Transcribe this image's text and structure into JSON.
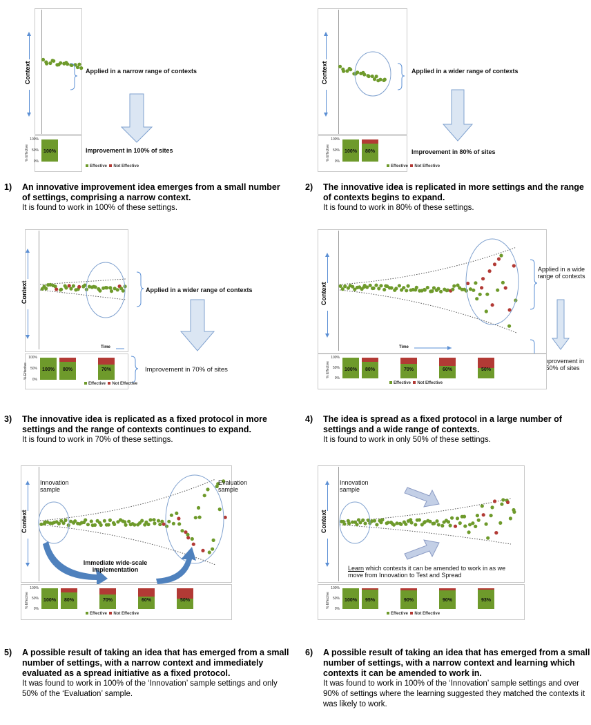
{
  "colors": {
    "effective": "#6e9a2b",
    "not_effective": "#b23a35",
    "arrow": "#5b8fd4",
    "ellipse": "#7fa1cf"
  },
  "common": {
    "context_label": "Context",
    "pct_effective_label": "% Effective",
    "ticks": [
      "100%",
      "50%",
      "0%"
    ],
    "legend_effective": "Effective",
    "legend_not_effective": "Not Effective",
    "time_label": "Time"
  },
  "panels": [
    {
      "number": "1)",
      "note_range": "Applied in a narrow range of contexts",
      "note_improvement": "Improvement in 100% of sites",
      "bars": [
        {
          "label": "100%",
          "effective": 1.0
        }
      ],
      "caption_bold": "An innovative improvement idea emerges from a small number of settings, comprising a narrow context.",
      "caption_plain": "It is found to work in 100% of these settings."
    },
    {
      "number": "2)",
      "note_range": "Applied in a wider range of contexts",
      "note_improvement": "Improvement in 80% of sites",
      "bars": [
        {
          "label": "100%",
          "effective": 1.0
        },
        {
          "label": "80%",
          "effective": 0.8
        }
      ],
      "caption_bold": "The innovative idea is replicated in more settings and the range of contexts begins to expand.",
      "caption_plain": "It is found to work in 80% of these settings."
    },
    {
      "number": "3)",
      "note_range": "Applied in a wider range of contexts",
      "note_improvement": "Improvement in 70% of sites",
      "bars": [
        {
          "label": "100%",
          "effective": 1.0
        },
        {
          "label": "80%",
          "effective": 0.8
        },
        {
          "label": "70%",
          "effective": 0.7
        }
      ],
      "caption_bold": "The innovative idea is replicated as a fixed protocol in more settings and the range of contexts continues to expand.",
      "caption_plain": "It is found to work in 70% of these settings."
    },
    {
      "number": "4)",
      "note_range": "Applied in a wide range of contexts",
      "note_improvement": "Improvement in 50% of sites",
      "bars": [
        {
          "label": "100%",
          "effective": 1.0
        },
        {
          "label": "80%",
          "effective": 0.8
        },
        {
          "label": "70%",
          "effective": 0.7
        },
        {
          "label": "60%",
          "effective": 0.6
        },
        {
          "label": "50%",
          "effective": 0.5
        }
      ],
      "caption_bold": "The idea is spread as a fixed protocol in a large number of settings and a wide range of contexts.",
      "caption_plain": "It is found to work in only 50% of these settings."
    },
    {
      "number": "5)",
      "note_innovation": "Innovation sample",
      "note_evaluation": "Evaluation sample",
      "note_implementation": "Immediate wide-scale implementation",
      "bars": [
        {
          "label": "100%",
          "effective": 1.0
        },
        {
          "label": "80%",
          "effective": 0.8
        },
        {
          "label": "70%",
          "effective": 0.7
        },
        {
          "label": "60%",
          "effective": 0.6
        },
        {
          "label": "50%",
          "effective": 0.5
        }
      ],
      "caption_bold": "A possible result of taking an idea that has emerged from a small number of settings, with a narrow context and immediately evaluated as a spread initiative as a fixed protocol.",
      "caption_plain": "It was found to work in 100% of the ‘Innovation’ sample settings and only 50% of the ‘Evaluation’ sample."
    },
    {
      "number": "6)",
      "note_innovation": "Innovation sample",
      "note_learn_word": "Learn",
      "note_learn_rest": " which contexts it can be amended to work in as we move from Innovation to Test and Spread",
      "bars": [
        {
          "label": "100%",
          "effective": 1.0
        },
        {
          "label": "95%",
          "effective": 0.95
        },
        {
          "label": "90%",
          "effective": 0.9
        },
        {
          "label": "90%",
          "effective": 0.9
        },
        {
          "label": "93%",
          "effective": 0.93
        }
      ],
      "caption_bold": "A possible result of taking an idea that has emerged from a small number of settings, with a narrow context and learning which contexts it can be amended to work in.",
      "caption_plain": "It was found to work in 100% of the ‘Innovation’ sample settings and over 90% of settings where the learning suggested they matched the contexts it was likely to work."
    }
  ]
}
